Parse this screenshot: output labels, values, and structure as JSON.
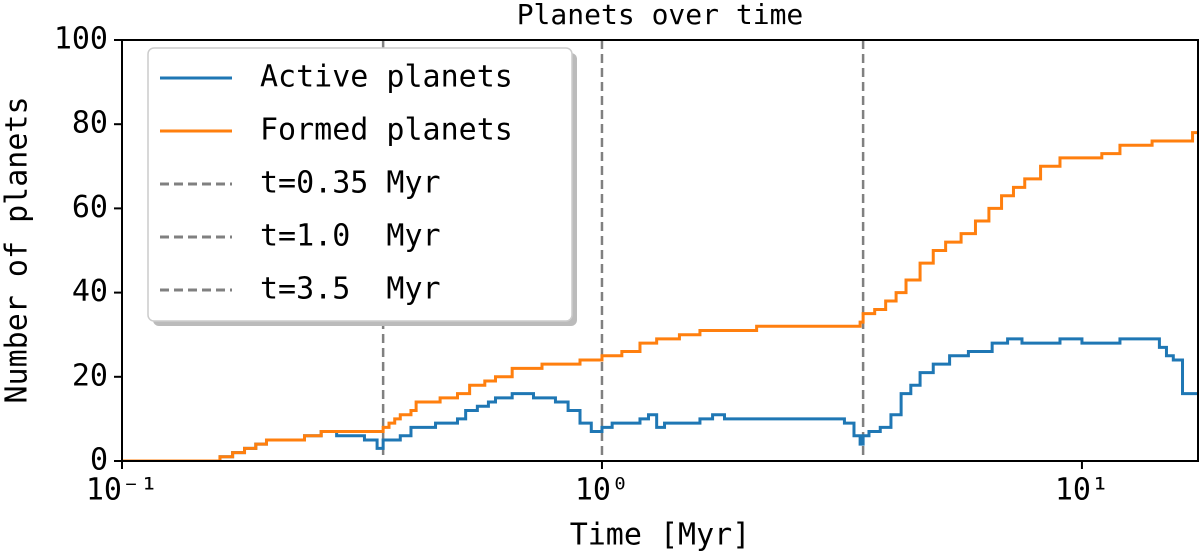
{
  "chart_data": {
    "type": "line",
    "title": "Planets over time",
    "x_label": "Time [Myr]",
    "y_label": "Number of planets",
    "x_scale": "log",
    "xlim": [
      0.1,
      17.45
    ],
    "ylim": [
      0,
      100
    ],
    "xticks": [
      {
        "value": 0.1,
        "label": "10⁻¹"
      },
      {
        "value": 1,
        "label": "10⁰"
      },
      {
        "value": 10,
        "label": "10¹"
      }
    ],
    "yticks": [
      0,
      20,
      40,
      60,
      80,
      100
    ],
    "legend": "upper left",
    "series": [
      {
        "name": "Active planets",
        "color": "#1f77b4",
        "x": [
          0.1,
          0.16,
          0.17,
          0.18,
          0.19,
          0.2,
          0.24,
          0.26,
          0.28,
          0.32,
          0.34,
          0.35,
          0.38,
          0.4,
          0.45,
          0.5,
          0.52,
          0.55,
          0.58,
          0.6,
          0.65,
          0.72,
          0.8,
          0.85,
          0.9,
          0.95,
          1.0,
          1.05,
          1.2,
          1.25,
          1.3,
          1.35,
          1.6,
          1.7,
          1.8,
          3.2,
          3.35,
          3.45,
          3.5,
          3.6,
          3.8,
          4.0,
          4.2,
          4.4,
          4.6,
          4.9,
          5.3,
          5.8,
          6.5,
          7.0,
          7.5,
          9,
          10,
          12,
          14.5,
          15,
          15.5,
          16.2,
          17.45
        ],
        "values": [
          0,
          1,
          2,
          3,
          4,
          5,
          6,
          7,
          6,
          5,
          3,
          5,
          6,
          8,
          9,
          10,
          12,
          13,
          14,
          15,
          16,
          15,
          14,
          12,
          9,
          7,
          8,
          9,
          10,
          11,
          8,
          9,
          10,
          11,
          10,
          9,
          6,
          4,
          6,
          7,
          8,
          11,
          16,
          18,
          21,
          23,
          25,
          26,
          28,
          29,
          28,
          29,
          28,
          29,
          27,
          25,
          24,
          16,
          16
        ]
      },
      {
        "name": "Formed planets",
        "color": "#ff7f0e",
        "x": [
          0.1,
          0.16,
          0.17,
          0.18,
          0.19,
          0.2,
          0.24,
          0.26,
          0.35,
          0.36,
          0.37,
          0.38,
          0.4,
          0.41,
          0.46,
          0.5,
          0.53,
          0.57,
          0.6,
          0.65,
          0.75,
          0.9,
          1.0,
          1.1,
          1.2,
          1.3,
          1.45,
          1.6,
          2.1,
          3.45,
          3.5,
          3.7,
          3.9,
          4.1,
          4.3,
          4.6,
          4.9,
          5.2,
          5.6,
          6.0,
          6.4,
          6.8,
          7.2,
          7.6,
          8.2,
          9.0,
          11.0,
          12.0,
          14.0,
          17.0,
          17.45
        ],
        "values": [
          0,
          1,
          2,
          3,
          4,
          5,
          6,
          7,
          8,
          9,
          10,
          11,
          12,
          14,
          15,
          16,
          18,
          19,
          20,
          22,
          23,
          24,
          25,
          26,
          28,
          29,
          30,
          31,
          32,
          33,
          35,
          36,
          38,
          40,
          43,
          47,
          50,
          52,
          54,
          57,
          60,
          63,
          65,
          67,
          70,
          72,
          73,
          75,
          76,
          78,
          78
        ]
      }
    ],
    "vlines": [
      {
        "name": "t=0.35 Myr",
        "x": 0.35,
        "color": "#808080"
      },
      {
        "name": "t=1.0  Myr",
        "x": 1.0,
        "color": "#808080"
      },
      {
        "name": "t=3.5  Myr",
        "x": 3.5,
        "color": "#808080"
      }
    ]
  }
}
